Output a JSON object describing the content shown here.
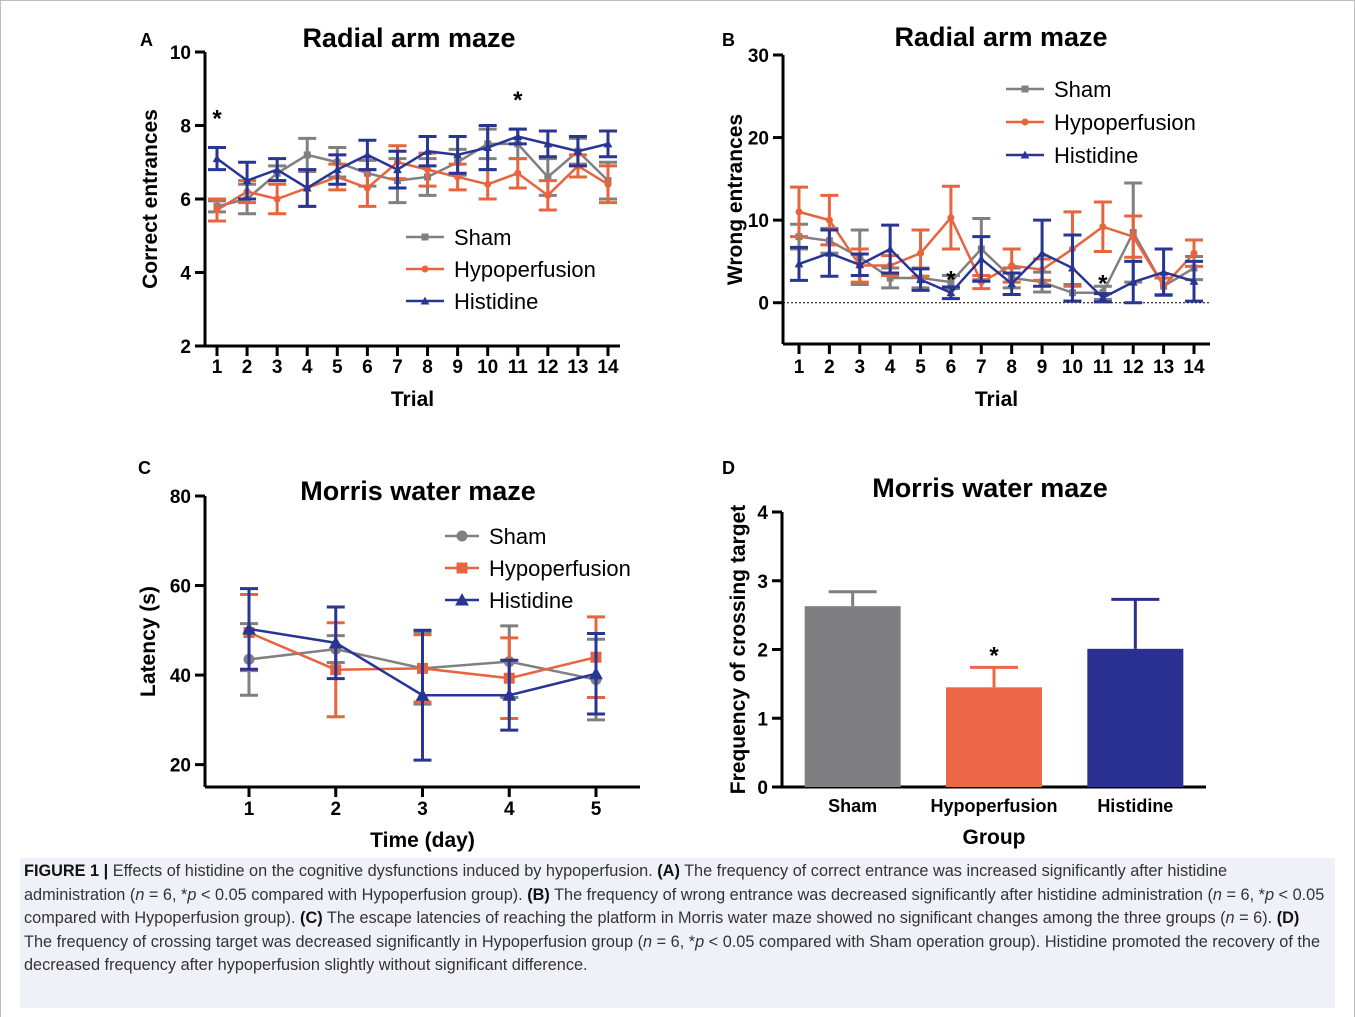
{
  "charts": [
    {
      "letter": "A",
      "type": "line",
      "title": "Radial arm maze",
      "xlabel": "Trial",
      "ylabel": "Correct entrances",
      "x": [
        1,
        2,
        3,
        4,
        5,
        6,
        7,
        8,
        9,
        10,
        11,
        12,
        13,
        14
      ],
      "ylim": [
        2,
        10
      ],
      "yticks": [
        2,
        4,
        6,
        8,
        10
      ],
      "legend_position": "bottom-center",
      "star_labels": [
        {
          "x": 1,
          "y": 8.3,
          "text": "*"
        },
        {
          "x": 11,
          "y": 8.8,
          "text": "*"
        }
      ],
      "series": [
        {
          "name": "Sham",
          "color": "#808080",
          "marker": "square",
          "values": [
            5.8,
            6.0,
            6.7,
            7.2,
            7.0,
            6.7,
            6.5,
            6.6,
            7.0,
            7.5,
            7.5,
            6.6,
            7.3,
            6.5
          ],
          "errors": [
            0.15,
            0.4,
            0.2,
            0.45,
            0.4,
            0.35,
            0.6,
            0.5,
            0.35,
            0.4,
            0.4,
            0.5,
            0.35,
            0.5
          ]
        },
        {
          "name": "Hypoperfusion",
          "color": "#e8643f",
          "marker": "circle",
          "values": [
            5.7,
            6.2,
            6.0,
            6.3,
            6.6,
            6.3,
            7.0,
            6.8,
            6.6,
            6.4,
            6.7,
            6.1,
            6.9,
            6.4
          ],
          "errors": [
            0.3,
            0.3,
            0.4,
            0.5,
            0.35,
            0.5,
            0.45,
            0.45,
            0.35,
            0.4,
            0.4,
            0.4,
            0.3,
            0.5
          ]
        },
        {
          "name": "Histidine",
          "color": "#283593",
          "marker": "triangle",
          "values": [
            7.1,
            6.5,
            6.8,
            6.3,
            6.8,
            7.2,
            6.8,
            7.3,
            7.2,
            7.4,
            7.7,
            7.5,
            7.3,
            7.5
          ],
          "errors": [
            0.3,
            0.5,
            0.3,
            0.5,
            0.4,
            0.4,
            0.5,
            0.4,
            0.5,
            0.6,
            0.2,
            0.35,
            0.4,
            0.35
          ]
        }
      ]
    },
    {
      "letter": "B",
      "type": "line",
      "title": "Radial arm maze",
      "xlabel": "Trial",
      "ylabel": "Wrong entrances",
      "x": [
        1,
        2,
        3,
        4,
        5,
        6,
        7,
        8,
        9,
        10,
        11,
        12,
        13,
        14
      ],
      "ylim": [
        -5,
        30
      ],
      "yticks": [
        0,
        10,
        20,
        30
      ],
      "zero_line": true,
      "legend_position": "top-right",
      "star_labels": [
        {
          "x": 6,
          "y": 3.3,
          "text": "*"
        },
        {
          "x": 11,
          "y": 2.8,
          "text": "*"
        }
      ],
      "series": [
        {
          "name": "Sham",
          "color": "#808080",
          "marker": "square",
          "values": [
            8,
            7.5,
            5.5,
            3,
            3,
            2.5,
            6.5,
            3,
            2.5,
            1.2,
            1.2,
            8.5,
            2,
            4.2
          ],
          "errors": [
            1.5,
            1.5,
            3.3,
            1.2,
            1.2,
            0.8,
            3.7,
            1.2,
            1.2,
            1.0,
            0.8,
            6.0,
            1.0,
            1.4
          ]
        },
        {
          "name": "Hypoperfusion",
          "color": "#e8643f",
          "marker": "circle",
          "values": [
            11,
            10,
            4.5,
            4.5,
            6,
            10.3,
            2.5,
            4.5,
            4,
            6.5,
            9.2,
            8,
            2,
            6
          ],
          "errors": [
            3,
            3,
            2.0,
            1.2,
            2.8,
            3.8,
            0.8,
            2,
            1.3,
            4.5,
            3,
            2.5,
            1.0,
            1.6
          ]
        },
        {
          "name": "Histidine",
          "color": "#283593",
          "marker": "triangle",
          "values": [
            4.7,
            6,
            4.6,
            6.5,
            2.8,
            1.2,
            5.3,
            2.3,
            6,
            4.2,
            0.6,
            2.5,
            3.7,
            2.6
          ],
          "errors": [
            2,
            2.8,
            1.3,
            2.9,
            1.3,
            0.7,
            2.7,
            1.3,
            4,
            4,
            0.5,
            2.5,
            2.8,
            2.4
          ]
        }
      ]
    },
    {
      "letter": "C",
      "type": "line",
      "title": "Morris water maze",
      "xlabel": "Time (day)",
      "ylabel": "Latency (s)",
      "x": [
        1,
        2,
        3,
        4,
        5
      ],
      "ylim": [
        15,
        80
      ],
      "yticks": [
        20,
        40,
        60,
        80
      ],
      "legend_position": "top-right",
      "series": [
        {
          "name": "Sham",
          "color": "#808080",
          "marker": "circle",
          "values": [
            43.5,
            45.8,
            41.5,
            43,
            39
          ],
          "errors": [
            8,
            3,
            8,
            8,
            9
          ]
        },
        {
          "name": "Hypoperfusion",
          "color": "#e8643f",
          "marker": "square",
          "values": [
            49.5,
            41.2,
            41.5,
            39.3,
            44
          ],
          "errors": [
            8.5,
            10.5,
            7.5,
            9,
            9
          ]
        },
        {
          "name": "Histidine",
          "color": "#283593",
          "marker": "triangle",
          "values": [
            50.3,
            47.2,
            35.5,
            35.5,
            40.3
          ],
          "errors": [
            9,
            8,
            14.5,
            7.8,
            9
          ]
        }
      ]
    },
    {
      "letter": "D",
      "type": "bar",
      "title": "Morris water maze",
      "xlabel": "Group",
      "ylabel": "Frequency of crossing target",
      "categories": [
        "Sham",
        "Hypoperfusion",
        "Histidine"
      ],
      "values": [
        2.63,
        1.45,
        2.01
      ],
      "errors": [
        0.21,
        0.29,
        0.72
      ],
      "colors": [
        "#7f7f81",
        "#eb6747",
        "#29308f"
      ],
      "ylim": [
        0,
        4
      ],
      "yticks": [
        0,
        1,
        2,
        3,
        4
      ],
      "star_labels": [
        {
          "category": "Hypoperfusion",
          "text": "*"
        }
      ]
    }
  ],
  "caption": {
    "label": "FIGURE 1 |",
    "parts": [
      {
        "t": "Effects of histidine on the cognitive dysfunctions induced by hypoperfusion. "
      },
      {
        "t": "(A)",
        "b": true
      },
      {
        "t": " The frequency of correct entrance was increased significantly after histidine administration ("
      },
      {
        "t": "n",
        "i": true
      },
      {
        "t": " = 6, *"
      },
      {
        "t": "p",
        "i": true
      },
      {
        "t": " < 0.05 compared with Hypoperfusion group). "
      },
      {
        "t": "(B)",
        "b": true
      },
      {
        "t": " The frequency of wrong entrance was decreased significantly after histidine administration ("
      },
      {
        "t": "n",
        "i": true
      },
      {
        "t": " = 6, *"
      },
      {
        "t": "p",
        "i": true
      },
      {
        "t": " < 0.05 compared with Hypoperfusion group). "
      },
      {
        "t": "(C)",
        "b": true
      },
      {
        "t": " The escape latencies of reaching the platform in Morris water maze showed no significant changes among the three groups ("
      },
      {
        "t": "n",
        "i": true
      },
      {
        "t": " = 6). "
      },
      {
        "t": "(D)",
        "b": true
      },
      {
        "t": " The frequency of crossing target was decreased significantly in Hypoperfusion group ("
      },
      {
        "t": "n",
        "i": true
      },
      {
        "t": " = 6, *"
      },
      {
        "t": "p",
        "i": true
      },
      {
        "t": " < 0.05 compared with Sham operation group). Histidine promoted the recovery of the decreased frequency after hypoperfusion slightly without significant difference."
      }
    ]
  }
}
